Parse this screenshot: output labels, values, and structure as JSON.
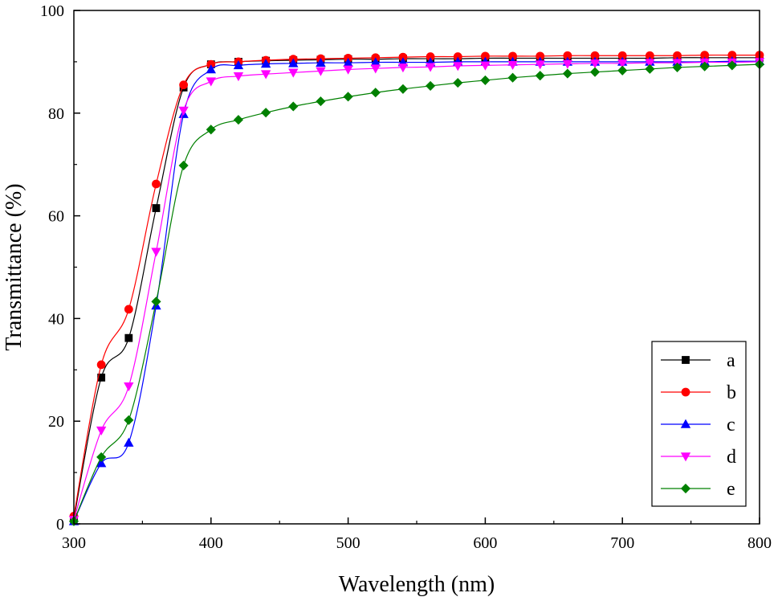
{
  "chart_data": {
    "type": "line",
    "title": "",
    "xlabel": "Wavelength (nm)",
    "ylabel": "Transmittance (%)",
    "xlim": [
      300,
      800
    ],
    "ylim": [
      0,
      100
    ],
    "xticks": [
      300,
      400,
      500,
      600,
      700,
      800
    ],
    "yticks": [
      0,
      20,
      40,
      60,
      80,
      100
    ],
    "legend_position": "bottom-right",
    "series": [
      {
        "name": "a",
        "color": "#000000",
        "marker": "square",
        "x": [
          300,
          320,
          340,
          360,
          380,
          400,
          420,
          440,
          460,
          480,
          500,
          520,
          540,
          560,
          580,
          600,
          620,
          640,
          660,
          680,
          700,
          720,
          740,
          760,
          780,
          800
        ],
        "y": [
          1,
          28.5,
          36.2,
          61.5,
          85,
          89.5,
          90,
          90.2,
          90.3,
          90.4,
          90.5,
          90.5,
          90.6,
          90.6,
          90.6,
          90.7,
          90.7,
          90.7,
          90.7,
          90.7,
          90.7,
          90.7,
          90.8,
          90.8,
          90.8,
          90.8
        ]
      },
      {
        "name": "b",
        "color": "#ff0000",
        "marker": "circle",
        "x": [
          300,
          320,
          340,
          360,
          380,
          400,
          420,
          440,
          460,
          480,
          500,
          520,
          540,
          560,
          580,
          600,
          620,
          640,
          660,
          680,
          700,
          720,
          740,
          760,
          780,
          800
        ],
        "y": [
          1.5,
          31,
          41.8,
          66.2,
          85.5,
          89.5,
          90,
          90.3,
          90.5,
          90.6,
          90.7,
          90.8,
          90.9,
          91,
          91,
          91.1,
          91.1,
          91.1,
          91.2,
          91.2,
          91.2,
          91.2,
          91.2,
          91.3,
          91.3,
          91.3
        ]
      },
      {
        "name": "c",
        "color": "#0000ff",
        "marker": "triangle-up",
        "x": [
          300,
          320,
          340,
          360,
          380,
          400,
          420,
          440,
          460,
          480,
          500,
          520,
          540,
          560,
          580,
          600,
          620,
          640,
          660,
          680,
          700,
          720,
          740,
          760,
          780,
          800
        ],
        "y": [
          0.5,
          11.8,
          15.8,
          42.5,
          79.8,
          88.5,
          89.3,
          89.6,
          89.7,
          89.8,
          89.8,
          89.9,
          89.9,
          89.9,
          90,
          90,
          90,
          90,
          90,
          90,
          90,
          90,
          90,
          90,
          90.1,
          90.1
        ]
      },
      {
        "name": "d",
        "color": "#ff00ff",
        "marker": "triangle-down",
        "x": [
          300,
          320,
          340,
          360,
          380,
          400,
          420,
          440,
          460,
          480,
          500,
          520,
          540,
          560,
          580,
          600,
          620,
          640,
          660,
          680,
          700,
          720,
          740,
          760,
          780,
          800
        ],
        "y": [
          0.8,
          18.2,
          26.8,
          53,
          80.5,
          86.2,
          87.2,
          87.6,
          87.9,
          88.2,
          88.5,
          88.7,
          88.9,
          89,
          89.2,
          89.3,
          89.4,
          89.5,
          89.6,
          89.7,
          89.7,
          89.8,
          89.8,
          89.9,
          89.9,
          90
        ]
      },
      {
        "name": "e",
        "color": "#008000",
        "marker": "diamond",
        "x": [
          300,
          320,
          340,
          360,
          380,
          400,
          420,
          440,
          460,
          480,
          500,
          520,
          540,
          560,
          580,
          600,
          620,
          640,
          660,
          680,
          700,
          720,
          740,
          760,
          780,
          800
        ],
        "y": [
          0.5,
          13,
          20.2,
          43.3,
          69.8,
          76.8,
          78.7,
          80.1,
          81.3,
          82.3,
          83.2,
          84,
          84.7,
          85.3,
          85.9,
          86.4,
          86.9,
          87.3,
          87.7,
          88,
          88.3,
          88.6,
          88.9,
          89.1,
          89.3,
          89.5
        ]
      }
    ]
  }
}
